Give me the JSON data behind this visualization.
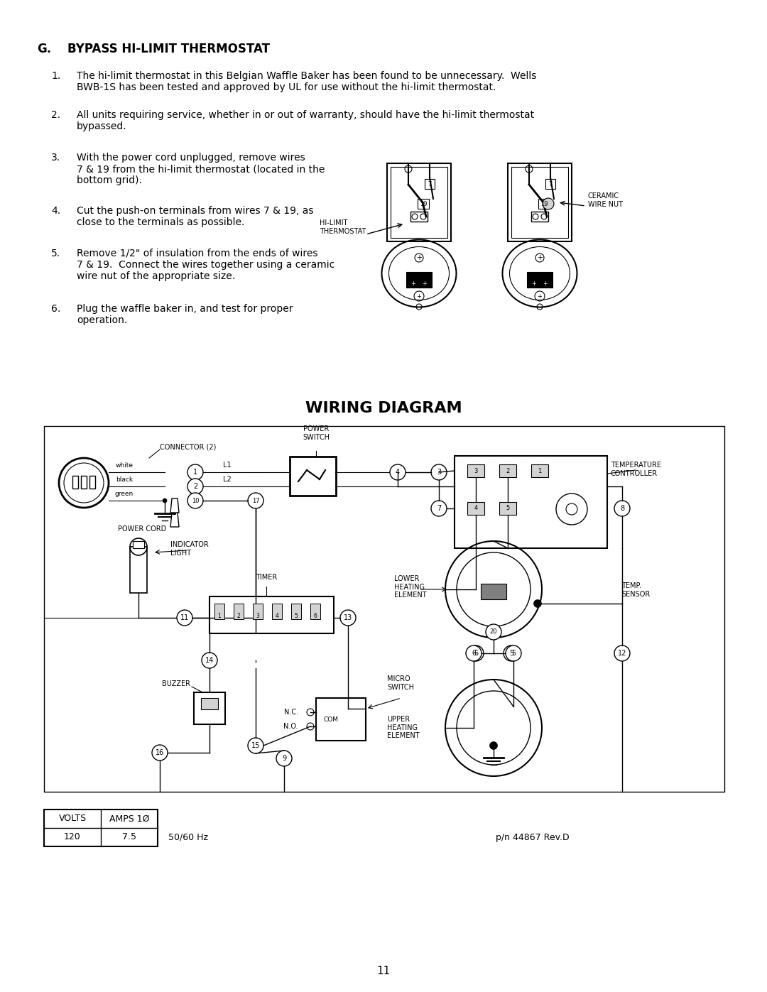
{
  "bg_color": "#ffffff",
  "page_width": 10.8,
  "page_height": 13.97,
  "section_header": "G.",
  "section_title": "BYPASS HI-LIMIT THERMOSTAT",
  "items": [
    "The hi-limit thermostat in this Belgian Waffle Baker has been found to be unnecessary.  Wells\nBWB-1S has been tested and approved by UL for use without the hi-limit thermostat.",
    "All units requiring service, whether in or out of warranty, should have the hi-limit thermostat\nbypassed.",
    "With the power cord unplugged, remove wires\n7 & 19 from the hi-limit thermostat (located in the\nbottom grid).",
    "Cut the push-on terminals from wires 7 & 19, as\nclose to the terminals as possible.",
    "Remove 1/2\" of insulation from the ends of wires\n7 & 19.  Connect the wires together using a ceramic\nwire nut of the appropriate size.",
    "Plug the waffle baker in, and test for proper\noperation."
  ],
  "wiring_title": "WIRING DIAGRAM",
  "footer_volts": "VOLTS",
  "footer_amps": "AMPS 1Ø",
  "footer_v_val": "120",
  "footer_a_val": "7.5",
  "footer_hz": "50/60 Hz",
  "footer_pn": "p/n 44867 Rev.D",
  "page_num": "11"
}
